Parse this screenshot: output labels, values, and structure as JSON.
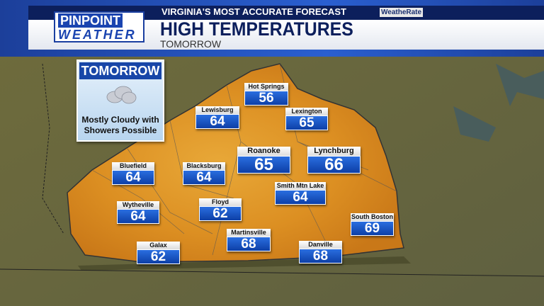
{
  "header": {
    "logo_line1": "PINPOINT",
    "logo_line2": "WEATHER",
    "tagline": "VIRGINIA'S MOST ACCURATE FORECAST",
    "rating_badge": "WeatheRate",
    "title": "HIGH TEMPERATURES",
    "subtitle": "TOMORROW"
  },
  "forecast_card": {
    "heading": "TOMORROW",
    "icon": "cloud-icon",
    "condition": "Mostly Cloudy with Showers Possible"
  },
  "colors": {
    "brand_blue": "#1846a8",
    "navy": "#0c1f5c",
    "map_warm": "#e0a030"
  },
  "cities": [
    {
      "name": "Hot Springs",
      "temp": "56"
    },
    {
      "name": "Lewisburg",
      "temp": "64"
    },
    {
      "name": "Lexington",
      "temp": "65"
    },
    {
      "name": "Roanoke",
      "temp": "65"
    },
    {
      "name": "Lynchburg",
      "temp": "66"
    },
    {
      "name": "Bluefield",
      "temp": "64"
    },
    {
      "name": "Blacksburg",
      "temp": "64"
    },
    {
      "name": "Smith Mtn Lake",
      "temp": "64"
    },
    {
      "name": "Wytheville",
      "temp": "64"
    },
    {
      "name": "Floyd",
      "temp": "62"
    },
    {
      "name": "South Boston",
      "temp": "69"
    },
    {
      "name": "Martinsville",
      "temp": "68"
    },
    {
      "name": "Galax",
      "temp": "62"
    },
    {
      "name": "Danville",
      "temp": "68"
    }
  ]
}
